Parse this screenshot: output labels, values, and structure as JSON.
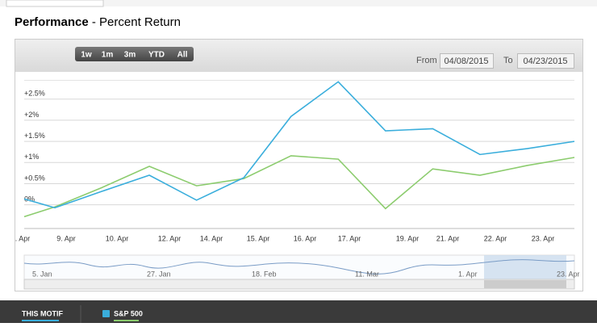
{
  "header": {
    "title_bold": "Performance",
    "title_rest": "- Percent Return"
  },
  "toolbar": {
    "buttons": [
      "1w",
      "1m",
      "3m",
      "YTD",
      "All"
    ],
    "from_label": "From",
    "from_date": "04/08/2015",
    "to_label": "To",
    "to_date": "04/23/2015"
  },
  "chart_data": {
    "type": "line",
    "x_labels": [
      ". Apr",
      "9. Apr",
      "10. Apr",
      "12. Apr",
      "14. Apr",
      "15. Apr",
      "16. Apr",
      "17. Apr",
      "19. Apr",
      "21. Apr",
      "22. Apr",
      "23. Apr"
    ],
    "series": [
      {
        "name": "THIS MOTIF",
        "color": "#3aaedc",
        "values": [
          0.13,
          -0.08,
          0.31,
          0.69,
          0.1,
          0.63,
          2.08,
          2.9,
          1.74,
          1.79,
          1.18,
          1.32,
          1.49
        ]
      },
      {
        "name": "S&P 500",
        "color": "#8ccc6e",
        "values": [
          -0.29,
          -0.06,
          0.4,
          0.9,
          0.44,
          0.61,
          1.15,
          1.07,
          -0.1,
          0.84,
          0.69,
          0.92,
          1.11
        ]
      }
    ],
    "ylim": [
      -0.57,
      3.02
    ],
    "yticks": [
      {
        "value": 0,
        "label": "0%"
      },
      {
        "value": 0.5,
        "label": "+0.5%"
      },
      {
        "value": 1,
        "label": "+1%"
      },
      {
        "value": 1.5,
        "label": "+1.5%"
      },
      {
        "value": 2,
        "label": "+2%"
      },
      {
        "value": 2.5,
        "label": "+2.5%"
      }
    ],
    "grid": true
  },
  "navigator": {
    "labels": [
      "5. Jan",
      "27. Jan",
      "18. Feb",
      "11. Mar",
      "1. Apr",
      "23. Apr"
    ]
  }
}
